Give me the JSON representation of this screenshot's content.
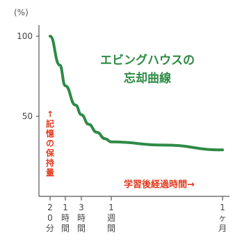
{
  "chart_data": {
    "type": "line",
    "title_lines": [
      "エビングハウスの",
      "忘却曲線"
    ],
    "ylabel": "(%)",
    "ylim": [
      0,
      100
    ],
    "yticks": [
      {
        "value": 100,
        "label": "100"
      },
      {
        "value": 50,
        "label": "50"
      }
    ],
    "y_annotation": "↑記憶の保持量",
    "x_annotation": "学習後経過時間→",
    "xticks": [
      {
        "value": 20,
        "label_lines": [
          "2",
          "0",
          "分"
        ]
      },
      {
        "value": 60,
        "label_lines": [
          "1",
          "時",
          "間"
        ]
      },
      {
        "value": 180,
        "label_lines": [
          "3",
          "時",
          "間"
        ]
      },
      {
        "value": 10080,
        "label_lines": [
          "1",
          "週",
          "間"
        ]
      },
      {
        "value": 43200,
        "label_lines": [
          "1",
          "ヶ",
          "月"
        ]
      }
    ],
    "x_unit": "minutes",
    "series": [
      {
        "color": "#2e8a45",
        "points": [
          {
            "x": 20,
            "y": 100
          },
          {
            "x": 40,
            "y": 82
          },
          {
            "x": 60,
            "y": 69
          },
          {
            "x": 120,
            "y": 57
          },
          {
            "x": 180,
            "y": 51
          },
          {
            "x": 480,
            "y": 45
          },
          {
            "x": 1440,
            "y": 40
          },
          {
            "x": 4320,
            "y": 36
          },
          {
            "x": 10080,
            "y": 34
          },
          {
            "x": 20160,
            "y": 32
          },
          {
            "x": 43200,
            "y": 29
          }
        ]
      }
    ]
  }
}
